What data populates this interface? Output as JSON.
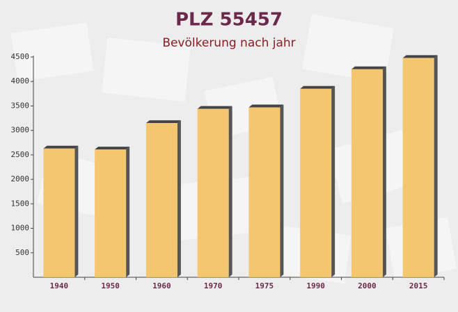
{
  "chart_data": {
    "type": "bar",
    "title": "PLZ 55457",
    "subtitle": "Bevölkerung nach jahr",
    "categories": [
      "1940",
      "1950",
      "1960",
      "1970",
      "1975",
      "1990",
      "2000",
      "2015"
    ],
    "values": [
      2630,
      2610,
      3150,
      3440,
      3470,
      3850,
      4250,
      4480
    ],
    "color": "#f5c162",
    "ylim": [
      0,
      4500
    ],
    "yticks": [
      500,
      1000,
      1500,
      2000,
      2500,
      3000,
      3500,
      4000,
      4500
    ]
  }
}
